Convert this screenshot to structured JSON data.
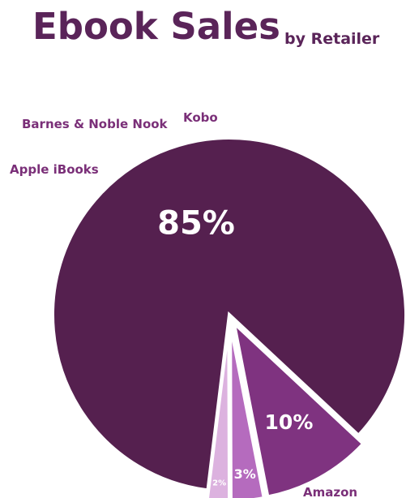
{
  "chart_data": {
    "type": "pie",
    "title": "Ebook Sales",
    "subtitle": "by Retailer",
    "slices": [
      {
        "label": "Amazon",
        "value": 85,
        "value_label": "85%",
        "color": "#55204f",
        "exploded": false
      },
      {
        "label": "Apple iBooks",
        "value": 10,
        "value_label": "10%",
        "color": "#7f3380",
        "exploded": true
      },
      {
        "label": "Barnes & Noble Nook",
        "value": 3,
        "value_label": "3%",
        "color": "#b56bbe",
        "exploded": true
      },
      {
        "label": "Kobo",
        "value": 2,
        "value_label": "2%",
        "color": "#dcb2df",
        "exploded": true
      }
    ],
    "label_color": "#7a2f78",
    "value_text_color": "#ffffff"
  }
}
